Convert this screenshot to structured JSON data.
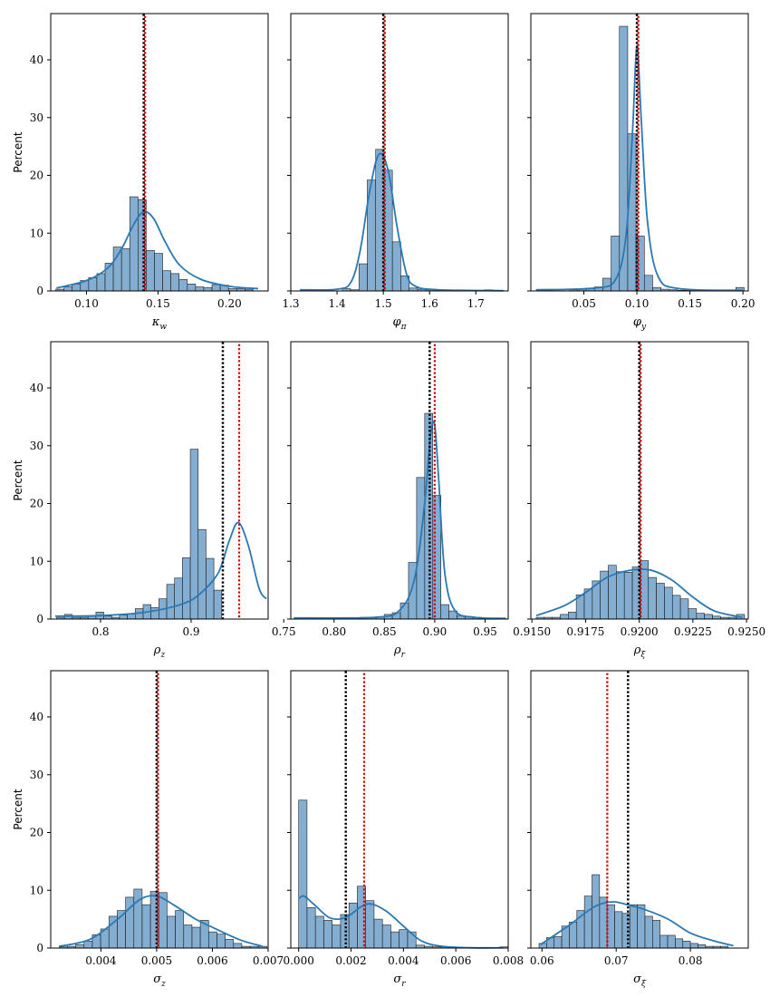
{
  "figure": {
    "bar_color": "#6d9fc9",
    "kde_color": "#2a78b4",
    "true_line_color": "#000000",
    "est_line_color": "#d40000"
  },
  "chart_data": [
    {
      "type": "bar",
      "xlabel": "κ_w",
      "xlabel_main": "κ",
      "xlabel_sub": "w",
      "ylabel": "Percent",
      "xlim": [
        0.075,
        0.227
      ],
      "ylim": [
        0,
        48
      ],
      "xticks": [
        0.1,
        0.15,
        0.2
      ],
      "xtick_labels": [
        "0.10",
        "0.15",
        "0.20"
      ],
      "yticks": [
        0,
        10,
        20,
        30,
        40
      ],
      "ytick_labels": [
        "0",
        "10",
        "20",
        "30",
        "40"
      ],
      "show_ytick_labels": true,
      "bin_start": 0.0785,
      "bin_width": 0.00575,
      "values": [
        0.3,
        0.7,
        1.2,
        1.8,
        2.3,
        3,
        4.8,
        7.6,
        7.3,
        16.3,
        15.8,
        7,
        6.5,
        3.5,
        3,
        2,
        1.2,
        0.7,
        0.6,
        1.1,
        1,
        0.4,
        0.4,
        0.3
      ],
      "kde": [
        [
          0.079,
          0.5
        ],
        [
          0.1,
          1.8
        ],
        [
          0.115,
          4
        ],
        [
          0.125,
          7.5
        ],
        [
          0.133,
          11.5
        ],
        [
          0.14,
          13.7
        ],
        [
          0.147,
          12.5
        ],
        [
          0.155,
          8.5
        ],
        [
          0.165,
          4.5
        ],
        [
          0.18,
          2
        ],
        [
          0.2,
          0.8
        ],
        [
          0.22,
          0.4
        ]
      ],
      "true_value": 0.14,
      "estimate": 0.14
    },
    {
      "type": "bar",
      "xlabel": "φ_π",
      "xlabel_main": "φ",
      "xlabel_sub": "π",
      "ylabel": "",
      "xlim": [
        1.3,
        1.77
      ],
      "ylim": [
        0,
        48
      ],
      "xticks": [
        1.3,
        1.4,
        1.5,
        1.6,
        1.7
      ],
      "xtick_labels": [
        "1.3",
        "1.4",
        "1.5",
        "1.6",
        "1.7"
      ],
      "yticks": [
        0,
        10,
        20,
        30,
        40
      ],
      "ytick_labels": [
        "0",
        "10",
        "20",
        "30",
        "40"
      ],
      "show_ytick_labels": false,
      "bin_start": 1.3208,
      "bin_width": 0.01808,
      "values": [
        0.2,
        0,
        0,
        0,
        0,
        0.4,
        0.2,
        4.7,
        19.2,
        24.5,
        20.9,
        8.5,
        2.6,
        0.5,
        0.3,
        0.2,
        0.1,
        0.1,
        0.1,
        0,
        0,
        0,
        0.2
      ],
      "kde": [
        [
          1.32,
          0.2
        ],
        [
          1.4,
          0.3
        ],
        [
          1.43,
          1.5
        ],
        [
          1.45,
          7
        ],
        [
          1.47,
          17
        ],
        [
          1.49,
          23.6
        ],
        [
          1.51,
          21
        ],
        [
          1.53,
          11
        ],
        [
          1.55,
          3
        ],
        [
          1.57,
          0.8
        ],
        [
          1.62,
          0.2
        ],
        [
          1.76,
          0.05
        ]
      ],
      "true_value": 1.5,
      "estimate": 1.5
    },
    {
      "type": "bar",
      "xlabel": "φ_y",
      "xlabel_main": "φ",
      "xlabel_sub": "y",
      "ylabel": "",
      "xlim": [
        0,
        0.205
      ],
      "ylim": [
        0,
        48
      ],
      "xticks": [
        0.05,
        0.1,
        0.15,
        0.2
      ],
      "xtick_labels": [
        "0.05",
        "0.10",
        "0.15",
        "0.20"
      ],
      "yticks": [
        0,
        10,
        20,
        30,
        40
      ],
      "ytick_labels": [
        "0",
        "10",
        "20",
        "30",
        "40"
      ],
      "show_ytick_labels": false,
      "bin_start": 0.0051,
      "bin_width": 0.00784,
      "values": [
        0.2,
        0,
        0,
        0,
        0.2,
        0.3,
        0.5,
        0.7,
        2.2,
        9.5,
        45.8,
        27.2,
        9.5,
        2.7,
        0.6,
        0.3,
        0.2,
        0.1,
        0.1,
        0,
        0,
        0,
        0,
        0,
        0.6
      ],
      "kde": [
        [
          0.005,
          0.2
        ],
        [
          0.06,
          0.5
        ],
        [
          0.08,
          2
        ],
        [
          0.09,
          10
        ],
        [
          0.096,
          28
        ],
        [
          0.1,
          42.4
        ],
        [
          0.104,
          30
        ],
        [
          0.11,
          12
        ],
        [
          0.12,
          2.5
        ],
        [
          0.14,
          0.4
        ],
        [
          0.2,
          0.1
        ]
      ],
      "true_value": 0.1,
      "estimate": 0.1
    },
    {
      "type": "bar",
      "xlabel": "ρ_z",
      "xlabel_main": "ρ",
      "xlabel_sub": "z",
      "ylabel": "Percent",
      "xlim": [
        0.745,
        0.985
      ],
      "ylim": [
        0,
        48
      ],
      "xticks": [
        0.8,
        0.9
      ],
      "xtick_labels": [
        "0.8",
        "0.9"
      ],
      "yticks": [
        0,
        10,
        20,
        30,
        40
      ],
      "ytick_labels": [
        "0",
        "10",
        "20",
        "30",
        "40"
      ],
      "show_ytick_labels": true,
      "bin_start": 0.7515,
      "bin_width": 0.00868,
      "values": [
        0.3,
        0.8,
        0.3,
        0.3,
        0.5,
        1.2,
        0.5,
        0.3,
        0.7,
        0.9,
        1.8,
        2.5,
        2,
        3.5,
        6,
        7.1,
        10.6,
        29.4,
        15.5,
        10.5,
        5
      ],
      "kde": [
        [
          0.75,
          0.5
        ],
        [
          0.8,
          0.6
        ],
        [
          0.85,
          1.2
        ],
        [
          0.89,
          2.6
        ],
        [
          0.91,
          4.4
        ],
        [
          0.93,
          8
        ],
        [
          0.942,
          13.5
        ],
        [
          0.952,
          16.7
        ],
        [
          0.963,
          12.8
        ],
        [
          0.975,
          5.3
        ],
        [
          0.983,
          3.5
        ]
      ],
      "true_value": 0.935,
      "estimate": 0.953
    },
    {
      "type": "bar",
      "xlabel": "ρ_r",
      "xlabel_main": "ρ",
      "xlabel_sub": "r",
      "ylabel": "",
      "xlim": [
        0.757,
        0.973
      ],
      "ylim": [
        0,
        48
      ],
      "xticks": [
        0.75,
        0.8,
        0.85,
        0.9,
        0.95
      ],
      "xtick_labels": [
        "0.75",
        "0.80",
        "0.85",
        "0.90",
        "0.95"
      ],
      "yticks": [
        0,
        10,
        20,
        30,
        40
      ],
      "ytick_labels": [
        "0",
        "10",
        "20",
        "30",
        "40"
      ],
      "show_ytick_labels": false,
      "bin_start": 0.7614,
      "bin_width": 0.00804,
      "values": [
        0.2,
        0,
        0,
        0,
        0,
        0,
        0,
        0.1,
        0.3,
        0.2,
        0.4,
        0.8,
        1.1,
        2.8,
        9.8,
        24.5,
        35.6,
        21.4,
        2.5,
        1.4,
        0.6,
        0.4,
        0.3,
        0.2,
        0.2,
        0.2
      ],
      "kde": [
        [
          0.76,
          0.2
        ],
        [
          0.84,
          0.3
        ],
        [
          0.865,
          1.5
        ],
        [
          0.88,
          7
        ],
        [
          0.89,
          20
        ],
        [
          0.896,
          32
        ],
        [
          0.9,
          33.5
        ],
        [
          0.904,
          24
        ],
        [
          0.91,
          8
        ],
        [
          0.92,
          1.5
        ],
        [
          0.94,
          0.3
        ],
        [
          0.97,
          0.1
        ]
      ],
      "true_value": 0.895,
      "estimate": 0.9
    },
    {
      "type": "bar",
      "xlabel": "ρ_ξ",
      "xlabel_main": "ρ",
      "xlabel_sub": "ξ",
      "ylabel": "",
      "xlim": [
        0.91495,
        0.92508
      ],
      "ylim": [
        0,
        48
      ],
      "xticks": [
        0.915,
        0.9175,
        0.92,
        0.9225,
        0.925
      ],
      "xtick_labels": [
        "0.9150",
        "0.9175",
        "0.9200",
        "0.9225",
        "0.9250"
      ],
      "yticks": [
        0,
        10,
        20,
        30,
        40
      ],
      "ytick_labels": [
        "0",
        "10",
        "20",
        "30",
        "40"
      ],
      "show_ytick_labels": false,
      "bin_start": 0.9152,
      "bin_width": 0.0003733,
      "values": [
        0.3,
        0.3,
        0.3,
        0.8,
        1.2,
        4.2,
        5.2,
        6.6,
        8.3,
        9.3,
        8.2,
        8.1,
        9,
        10.1,
        7.2,
        6.2,
        5.5,
        4.1,
        3.5,
        1.8,
        1,
        0.8,
        0.5,
        0.3,
        0.3,
        0.8
      ],
      "kde": [
        [
          0.9152,
          0.6
        ],
        [
          0.9165,
          2.3
        ],
        [
          0.9175,
          4.6
        ],
        [
          0.9185,
          7.2
        ],
        [
          0.9195,
          8.4
        ],
        [
          0.9205,
          8.5
        ],
        [
          0.9215,
          6.8
        ],
        [
          0.9225,
          3.8
        ],
        [
          0.9235,
          1.4
        ],
        [
          0.9248,
          0.3
        ]
      ],
      "true_value": 0.92,
      "estimate": 0.92
    },
    {
      "type": "bar",
      "xlabel": "σ_z",
      "xlabel_main": "σ",
      "xlabel_sub": "z",
      "ylabel": "Percent",
      "xlim": [
        0.0031,
        0.007
      ],
      "ylim": [
        0,
        48
      ],
      "xticks": [
        0.004,
        0.005,
        0.006,
        0.007
      ],
      "xtick_labels": [
        "0.004",
        "0.005",
        "0.006",
        "0.007"
      ],
      "yticks": [
        0,
        10,
        20,
        30,
        40
      ],
      "ytick_labels": [
        "0",
        "10",
        "20",
        "30",
        "40"
      ],
      "show_ytick_labels": true,
      "bin_start": 0.00325,
      "bin_width": 0.000149,
      "values": [
        0.2,
        0.3,
        0.6,
        1.2,
        2.3,
        3.3,
        5.5,
        6.5,
        8.8,
        10.2,
        7.5,
        9.8,
        9.6,
        5.5,
        6.5,
        4,
        3.6,
        4.8,
        2.8,
        2.4,
        1.5,
        0.8,
        0.3,
        0.3,
        0.3
      ],
      "kde": [
        [
          0.00325,
          0.3
        ],
        [
          0.0038,
          1.5
        ],
        [
          0.0043,
          5
        ],
        [
          0.0047,
          8.4
        ],
        [
          0.005,
          9
        ],
        [
          0.0053,
          7.5
        ],
        [
          0.0057,
          5
        ],
        [
          0.006,
          3.6
        ],
        [
          0.0065,
          1.4
        ],
        [
          0.0069,
          0.3
        ]
      ],
      "true_value": 0.005,
      "estimate": 0.005
    },
    {
      "type": "bar",
      "xlabel": "σ_r",
      "xlabel_main": "σ",
      "xlabel_sub": "r",
      "ylabel": "",
      "xlim": [
        -0.0003,
        0.008
      ],
      "ylim": [
        0,
        48
      ],
      "xticks": [
        0,
        0.002,
        0.004,
        0.006,
        0.008
      ],
      "xtick_labels": [
        "0.000",
        "0.002",
        "0.004",
        "0.006",
        "0.008"
      ],
      "yticks": [
        0,
        10,
        20,
        30,
        40
      ],
      "ytick_labels": [
        "0",
        "10",
        "20",
        "30",
        "40"
      ],
      "show_ytick_labels": false,
      "bin_start": 0,
      "bin_width": 0.00032,
      "values": [
        25.6,
        7,
        5.5,
        4.8,
        4,
        5.8,
        7.8,
        10.7,
        8.2,
        5,
        4,
        2.8,
        3.2,
        2.8,
        0.5,
        0.3,
        0.2,
        0.2,
        0.1,
        0.1,
        0,
        0,
        0,
        0.1,
        0.2
      ],
      "kde": [
        [
          0,
          8.5
        ],
        [
          0.0002,
          9
        ],
        [
          0.0006,
          7.5
        ],
        [
          0.0012,
          5.2
        ],
        [
          0.0018,
          5.3
        ],
        [
          0.0024,
          7.2
        ],
        [
          0.0028,
          7.6
        ],
        [
          0.0034,
          6.2
        ],
        [
          0.004,
          3.8
        ],
        [
          0.0047,
          1.2
        ],
        [
          0.0055,
          0.3
        ],
        [
          0.0066,
          0.05
        ],
        [
          0.0078,
          0.05
        ]
      ],
      "true_value": 0.0018,
      "estimate": 0.0025
    },
    {
      "type": "bar",
      "xlabel": "σ_ξ",
      "xlabel_main": "σ",
      "xlabel_sub": "ξ",
      "ylabel": "",
      "xlim": [
        0.0585,
        0.0878
      ],
      "ylim": [
        0,
        48
      ],
      "xticks": [
        0.06,
        0.07,
        0.08
      ],
      "xtick_labels": [
        "0.06",
        "0.07",
        "0.08"
      ],
      "yticks": [
        0,
        10,
        20,
        30,
        40
      ],
      "ytick_labels": [
        "0",
        "10",
        "20",
        "30",
        "40"
      ],
      "show_ytick_labels": false,
      "bin_start": 0.0596,
      "bin_width": 0.00102,
      "values": [
        0.8,
        1.8,
        2,
        3.8,
        4.5,
        6.5,
        9,
        12.7,
        8.8,
        7.5,
        6.3,
        6,
        7.5,
        7.5,
        5.5,
        4.8,
        2.2,
        2.2,
        1.6,
        1.2,
        0.8,
        0.6,
        0.3,
        0.3,
        0.3
      ],
      "kde": [
        [
          0.0598,
          0.6
        ],
        [
          0.0635,
          3.8
        ],
        [
          0.067,
          7.1
        ],
        [
          0.0695,
          8
        ],
        [
          0.0715,
          7.5
        ],
        [
          0.074,
          6.6
        ],
        [
          0.077,
          5
        ],
        [
          0.08,
          2.6
        ],
        [
          0.083,
          1.3
        ],
        [
          0.0858,
          0.4
        ]
      ],
      "true_value": 0.0716,
      "estimate": 0.0688
    }
  ]
}
